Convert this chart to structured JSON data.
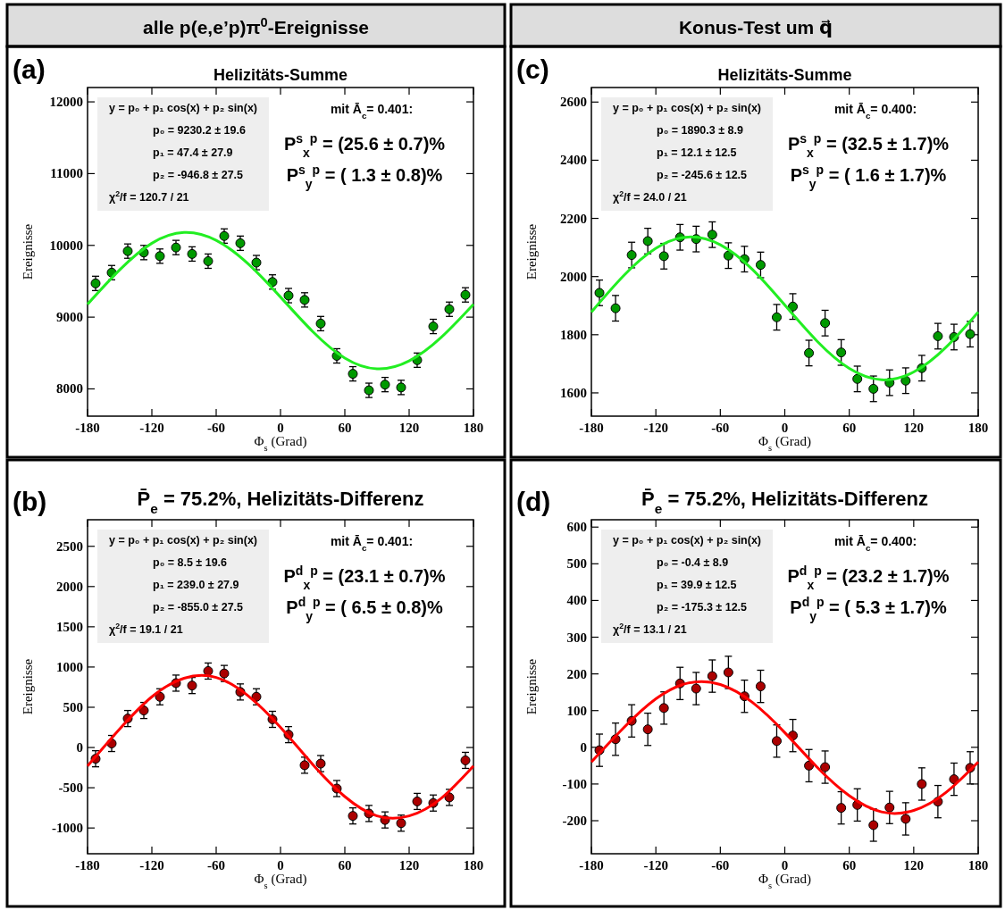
{
  "chart_data": [
    {
      "type": "scatter",
      "title": "Helizitäts-Summe",
      "xlabel": "Φ$_{s}$ (Grad)",
      "ylabel": "Ereignisse",
      "xlim": [
        -180,
        180
      ],
      "xticks": [
        -180,
        -120,
        -60,
        0,
        60,
        120,
        180
      ],
      "ylim": [
        7620,
        12200
      ],
      "yticks": [
        8000,
        9000,
        10000,
        11000,
        12000
      ],
      "annotations": [
        "(a)",
        "y = p₀ + p₁ cos(x) + p₂ sin(x)",
        "p₀ = 9230.2 ± 19.6",
        "p₁ =  47.4 ± 27.9",
        "p₂ = -946.8 ± 27.5",
        "χ$^{2}$/f = 120.7 / 21",
        "mit Ā$_{c}$= 0.401:",
        "P$^{s}$$_{x}$$^{p}$ = (25.6 ± 0.7)%",
        "P$^{s}$$_{y}$$^{p}$ = (  1.3 ± 0.8)%",
        "alle p(e,e’p)π$^{0}$-Ereignisse"
      ],
      "series": [
        {
          "type": "scatter",
          "marker": "circle",
          "color": "#009900",
          "x": [
            -172.5,
            -157.5,
            -142.5,
            -127.5,
            -112.5,
            -97.5,
            -82.5,
            -67.5,
            -52.5,
            -37.5,
            -22.5,
            -7.5,
            7.5,
            22.5,
            37.5,
            52.5,
            67.5,
            82.5,
            97.5,
            112.5,
            127.5,
            142.5,
            157.5,
            172.5
          ],
          "values": [
            9470,
            9620,
            9920,
            9900,
            9850,
            9970,
            9880,
            9780,
            10130,
            10030,
            9760,
            9490,
            9300,
            9240,
            8910,
            8460,
            8210,
            7980,
            8060,
            8020,
            8400,
            8870,
            9110,
            9310
          ],
          "errors": [
            100,
            100,
            100,
            100,
            100,
            100,
            100,
            100,
            100,
            100,
            100,
            100,
            100,
            100,
            100,
            100,
            100,
            100,
            100,
            100,
            100,
            100,
            100,
            100
          ]
        },
        {
          "type": "line",
          "color": "#22ee22",
          "x": [
            -180,
            -150,
            -120,
            -90,
            -60,
            -30,
            0,
            30,
            60,
            90,
            120,
            150,
            180
          ],
          "values": [
            9180,
            9660,
            10030,
            10180,
            10070,
            9740,
            9280,
            8800,
            8430,
            8280,
            8390,
            8720,
            9180
          ]
        }
      ]
    },
    {
      "type": "scatter",
      "title": "Helizitäts-Summe",
      "xlabel": "Φ$_{s}$ (Grad)",
      "ylabel": "Ereignisse",
      "xlim": [
        -180,
        180
      ],
      "xticks": [
        -180,
        -120,
        -60,
        0,
        60,
        120,
        180
      ],
      "ylim": [
        1520,
        2650
      ],
      "yticks": [
        1600,
        1800,
        2000,
        2200,
        2400,
        2600
      ],
      "annotations": [
        "(c)",
        "y = p₀ + p₁ cos(x) + p₂ sin(x)",
        "p₀ = 1890.3 ± 8.9",
        "p₁ =  12.1 ± 12.5",
        "p₂ = -245.6 ± 12.5",
        "χ$^{2}$/f = 24.0 / 21",
        "mit Ā$_{c}$= 0.400:",
        "P$^{s}$$_{x}$$^{p}$ = (32.5 ± 1.7)%",
        "P$^{s}$$_{y}$$^{p}$ = (  1.6 ± 1.7)%",
        "Konus-Test um q⃗"
      ],
      "series": [
        {
          "type": "scatter",
          "marker": "circle",
          "color": "#009900",
          "x": [
            -172.5,
            -157.5,
            -142.5,
            -127.5,
            -112.5,
            -97.5,
            -82.5,
            -67.5,
            -52.5,
            -37.5,
            -22.5,
            -7.5,
            7.5,
            22.5,
            37.5,
            52.5,
            67.5,
            82.5,
            97.5,
            112.5,
            127.5,
            142.5,
            157.5,
            172.5
          ],
          "values": [
            1944,
            1891,
            2074,
            2122,
            2070,
            2135,
            2129,
            2144,
            2072,
            2060,
            2040,
            1860,
            1897,
            1737,
            1840,
            1739,
            1648,
            1614,
            1635,
            1642,
            1685,
            1795,
            1792,
            1802
          ],
          "errors": [
            44,
            44,
            44,
            44,
            44,
            44,
            44,
            44,
            44,
            44,
            44,
            44,
            44,
            44,
            44,
            44,
            44,
            44,
            44,
            44,
            44,
            44,
            44,
            44
          ]
        },
        {
          "type": "line",
          "color": "#22ee22",
          "x": [
            -180,
            -150,
            -120,
            -90,
            -60,
            -30,
            0,
            30,
            60,
            90,
            120,
            150,
            180
          ],
          "values": [
            1878,
            2003,
            2097,
            2136,
            2109,
            2024,
            1902,
            1778,
            1684,
            1645,
            1672,
            1757,
            1878
          ]
        }
      ]
    },
    {
      "type": "scatter",
      "title": "P̄$_{e}$ = 75.2%, Helizitäts-Differenz",
      "xlabel": "Φ$_{s}$ (Grad)",
      "ylabel": "Ereignisse",
      "xlim": [
        -180,
        180
      ],
      "xticks": [
        -180,
        -120,
        -60,
        0,
        60,
        120,
        180
      ],
      "ylim": [
        -1320,
        2830
      ],
      "yticks": [
        -1000,
        -500,
        0,
        500,
        1000,
        1500,
        2000,
        2500
      ],
      "annotations": [
        "(b)",
        "y = p₀ + p₁ cos(x) + p₂ sin(x)",
        "p₀ =   8.5 ± 19.6",
        "p₁ = 239.0 ± 27.9",
        "p₂ = -855.0 ± 27.5",
        "χ$^{2}$/f = 19.1 / 21",
        "mit Ā$_{c}$= 0.401:",
        "P$^{d}$$_{x}$$^{p}$ = (23.1 ± 0.7)%",
        "P$^{d}$$_{y}$$^{p}$ = (  6.5 ± 0.8)%"
      ],
      "series": [
        {
          "type": "scatter",
          "marker": "circle",
          "color": "#aa0000",
          "x": [
            -172.5,
            -157.5,
            -142.5,
            -127.5,
            -112.5,
            -97.5,
            -82.5,
            -67.5,
            -52.5,
            -37.5,
            -22.5,
            -7.5,
            7.5,
            22.5,
            37.5,
            52.5,
            67.5,
            82.5,
            97.5,
            112.5,
            127.5,
            142.5,
            157.5,
            172.5
          ],
          "values": [
            -140,
            50,
            360,
            460,
            630,
            800,
            770,
            950,
            920,
            690,
            630,
            350,
            160,
            -220,
            -200,
            -510,
            -850,
            -820,
            -900,
            -940,
            -670,
            -690,
            -620,
            -160
          ],
          "errors": [
            100,
            100,
            100,
            100,
            100,
            100,
            100,
            100,
            100,
            100,
            100,
            100,
            100,
            100,
            100,
            100,
            100,
            100,
            100,
            100,
            100,
            100,
            100,
            100
          ]
        },
        {
          "type": "line",
          "color": "#ff0000",
          "x": [
            -180,
            -150,
            -120,
            -90,
            -60,
            -30,
            0,
            30,
            60,
            90,
            120,
            150,
            180
          ],
          "values": [
            -230,
            230,
            630,
            860,
            870,
            640,
            250,
            -210,
            -610,
            -850,
            -850,
            -630,
            -230
          ]
        }
      ]
    },
    {
      "type": "scatter",
      "title": "P̄$_{e}$ = 75.2%, Helizitäts-Differenz",
      "xlabel": "Φ$_{s}$ (Grad)",
      "ylabel": "Ereignisse",
      "xlim": [
        -180,
        180
      ],
      "xticks": [
        -180,
        -120,
        -60,
        0,
        60,
        120,
        180
      ],
      "ylim": [
        -290,
        620
      ],
      "yticks": [
        -200,
        -100,
        0,
        100,
        200,
        300,
        400,
        500,
        600
      ],
      "annotations": [
        "(d)",
        "y = p₀ + p₁ cos(x) + p₂ sin(x)",
        "p₀ =  -0.4 ± 8.9",
        "p₁ =  39.9 ± 12.5",
        "p₂ = -175.3 ± 12.5",
        "χ$^{2}$/f = 13.1 / 21",
        "mit Ā$_{c}$= 0.400:",
        "P$^{d}$$_{x}$$^{p}$ = (23.2 ± 1.7)%",
        "P$^{d}$$_{y}$$^{p}$ = (  5.3 ± 1.7)%"
      ],
      "series": [
        {
          "type": "scatter",
          "marker": "circle",
          "color": "#aa0000",
          "x": [
            -172.5,
            -157.5,
            -142.5,
            -127.5,
            -112.5,
            -97.5,
            -82.5,
            -67.5,
            -52.5,
            -37.5,
            -22.5,
            -7.5,
            7.5,
            22.5,
            37.5,
            52.5,
            67.5,
            82.5,
            97.5,
            112.5,
            127.5,
            142.5,
            157.5,
            172.5
          ],
          "values": [
            -8,
            22,
            72,
            49,
            107,
            174,
            160,
            194,
            204,
            139,
            166,
            17,
            32,
            -50,
            -54,
            -165,
            -157,
            -212,
            -164,
            -195,
            -100,
            -148,
            -87,
            -56
          ],
          "errors": [
            44,
            44,
            44,
            44,
            44,
            44,
            44,
            44,
            44,
            44,
            44,
            44,
            44,
            44,
            44,
            44,
            44,
            44,
            44,
            44,
            44,
            44,
            44,
            44
          ]
        },
        {
          "type": "line",
          "color": "#ff0000",
          "x": [
            -180,
            -150,
            -120,
            -90,
            -60,
            -30,
            0,
            30,
            60,
            90,
            120,
            150,
            180
          ],
          "values": [
            -40,
            53,
            132,
            175,
            171,
            122,
            40,
            -54,
            -132,
            -176,
            -172,
            -123,
            -40
          ]
        }
      ]
    }
  ]
}
